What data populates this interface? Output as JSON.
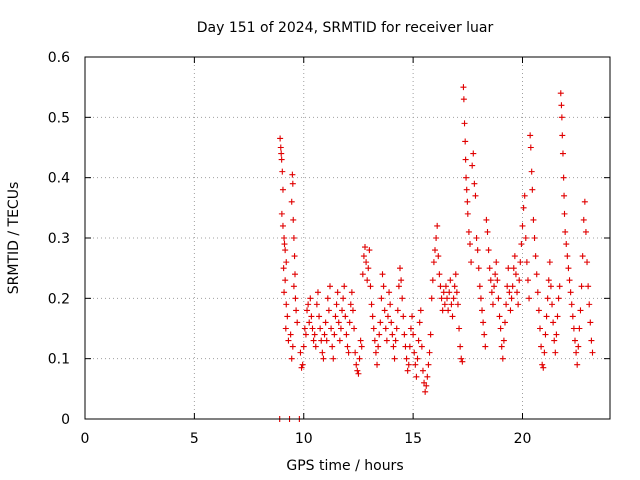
{
  "chart_data": {
    "type": "scatter",
    "title": "Day 151 of 2024, SRMTID for receiver luar",
    "xlabel": "GPS time / hours",
    "ylabel": "SRMTID / TECUs",
    "xlim": [
      0,
      24
    ],
    "ylim": [
      0,
      0.6
    ],
    "x_ticks": [
      0,
      5,
      10,
      15,
      20
    ],
    "x_tick_labels": [
      "0",
      "5",
      "10",
      "15",
      "20"
    ],
    "y_ticks": [
      0,
      0.1,
      0.2,
      0.3,
      0.4,
      0.5,
      0.6
    ],
    "y_tick_labels": [
      "0",
      "0.1",
      "0.2",
      "0.3",
      "0.4",
      "0.5",
      "0.6"
    ],
    "grid": true,
    "marker": "plus",
    "color": "#e00000",
    "series": [
      {
        "name": "SRMTID",
        "points": [
          [
            8.9,
            0.0
          ],
          [
            9.35,
            0.0
          ],
          [
            9.8,
            0.0
          ],
          [
            8.92,
            0.465
          ],
          [
            8.95,
            0.45
          ],
          [
            8.97,
            0.44
          ],
          [
            8.99,
            0.43
          ],
          [
            9.02,
            0.41
          ],
          [
            9.05,
            0.38
          ],
          [
            9.0,
            0.34
          ],
          [
            9.05,
            0.32
          ],
          [
            9.1,
            0.3
          ],
          [
            9.12,
            0.29
          ],
          [
            9.15,
            0.28
          ],
          [
            9.2,
            0.26
          ],
          [
            9.08,
            0.25
          ],
          [
            9.15,
            0.23
          ],
          [
            9.1,
            0.21
          ],
          [
            9.2,
            0.19
          ],
          [
            9.25,
            0.17
          ],
          [
            9.18,
            0.15
          ],
          [
            9.3,
            0.13
          ],
          [
            9.48,
            0.405
          ],
          [
            9.5,
            0.39
          ],
          [
            9.45,
            0.36
          ],
          [
            9.52,
            0.33
          ],
          [
            9.55,
            0.3
          ],
          [
            9.58,
            0.27
          ],
          [
            9.6,
            0.24
          ],
          [
            9.55,
            0.22
          ],
          [
            9.62,
            0.2
          ],
          [
            9.65,
            0.18
          ],
          [
            9.7,
            0.16
          ],
          [
            9.4,
            0.14
          ],
          [
            9.5,
            0.12
          ],
          [
            9.45,
            0.1
          ],
          [
            9.85,
            0.11
          ],
          [
            9.9,
            0.085
          ],
          [
            9.95,
            0.09
          ],
          [
            10.0,
            0.12
          ],
          [
            10.05,
            0.15
          ],
          [
            10.1,
            0.14
          ],
          [
            10.15,
            0.18
          ],
          [
            10.2,
            0.19
          ],
          [
            10.25,
            0.16
          ],
          [
            10.3,
            0.2
          ],
          [
            10.35,
            0.17
          ],
          [
            10.4,
            0.15
          ],
          [
            10.45,
            0.13
          ],
          [
            10.5,
            0.14
          ],
          [
            10.55,
            0.12
          ],
          [
            10.6,
            0.19
          ],
          [
            10.65,
            0.21
          ],
          [
            10.7,
            0.17
          ],
          [
            10.75,
            0.15
          ],
          [
            10.8,
            0.13
          ],
          [
            10.85,
            0.11
          ],
          [
            10.9,
            0.1
          ],
          [
            10.95,
            0.14
          ],
          [
            11.0,
            0.16
          ],
          [
            11.05,
            0.13
          ],
          [
            11.1,
            0.2
          ],
          [
            11.15,
            0.18
          ],
          [
            11.2,
            0.22
          ],
          [
            11.25,
            0.15
          ],
          [
            11.3,
            0.12
          ],
          [
            11.35,
            0.1
          ],
          [
            11.4,
            0.14
          ],
          [
            11.45,
            0.17
          ],
          [
            11.5,
            0.19
          ],
          [
            11.55,
            0.21
          ],
          [
            11.6,
            0.16
          ],
          [
            11.65,
            0.13
          ],
          [
            11.7,
            0.15
          ],
          [
            11.75,
            0.18
          ],
          [
            11.8,
            0.2
          ],
          [
            11.85,
            0.22
          ],
          [
            11.9,
            0.17
          ],
          [
            11.95,
            0.14
          ],
          [
            12.0,
            0.12
          ],
          [
            12.05,
            0.11
          ],
          [
            12.1,
            0.16
          ],
          [
            12.15,
            0.19
          ],
          [
            12.2,
            0.21
          ],
          [
            12.25,
            0.18
          ],
          [
            12.3,
            0.15
          ],
          [
            12.35,
            0.11
          ],
          [
            12.4,
            0.09
          ],
          [
            12.45,
            0.08
          ],
          [
            12.5,
            0.075
          ],
          [
            12.55,
            0.1
          ],
          [
            12.6,
            0.13
          ],
          [
            12.65,
            0.12
          ],
          [
            12.7,
            0.24
          ],
          [
            12.75,
            0.27
          ],
          [
            12.8,
            0.285
          ],
          [
            12.85,
            0.26
          ],
          [
            12.9,
            0.23
          ],
          [
            12.95,
            0.25
          ],
          [
            13.0,
            0.28
          ],
          [
            13.05,
            0.22
          ],
          [
            13.1,
            0.19
          ],
          [
            13.15,
            0.17
          ],
          [
            13.2,
            0.15
          ],
          [
            13.25,
            0.13
          ],
          [
            13.3,
            0.11
          ],
          [
            13.35,
            0.09
          ],
          [
            13.4,
            0.12
          ],
          [
            13.45,
            0.14
          ],
          [
            13.5,
            0.16
          ],
          [
            13.55,
            0.2
          ],
          [
            13.6,
            0.24
          ],
          [
            13.65,
            0.22
          ],
          [
            13.7,
            0.18
          ],
          [
            13.75,
            0.15
          ],
          [
            13.8,
            0.13
          ],
          [
            13.85,
            0.17
          ],
          [
            13.9,
            0.21
          ],
          [
            13.95,
            0.19
          ],
          [
            14.0,
            0.16
          ],
          [
            14.05,
            0.14
          ],
          [
            14.1,
            0.12
          ],
          [
            14.15,
            0.1
          ],
          [
            14.2,
            0.13
          ],
          [
            14.25,
            0.15
          ],
          [
            14.3,
            0.18
          ],
          [
            14.35,
            0.22
          ],
          [
            14.4,
            0.25
          ],
          [
            14.45,
            0.23
          ],
          [
            14.5,
            0.2
          ],
          [
            14.55,
            0.17
          ],
          [
            14.6,
            0.14
          ],
          [
            14.65,
            0.12
          ],
          [
            14.7,
            0.1
          ],
          [
            14.75,
            0.08
          ],
          [
            14.8,
            0.09
          ],
          [
            14.85,
            0.12
          ],
          [
            14.9,
            0.15
          ],
          [
            14.95,
            0.17
          ],
          [
            15.0,
            0.14
          ],
          [
            15.05,
            0.11
          ],
          [
            15.1,
            0.09
          ],
          [
            15.15,
            0.07
          ],
          [
            15.2,
            0.1
          ],
          [
            15.25,
            0.13
          ],
          [
            15.3,
            0.16
          ],
          [
            15.35,
            0.18
          ],
          [
            15.4,
            0.12
          ],
          [
            15.45,
            0.08
          ],
          [
            15.5,
            0.06
          ],
          [
            15.55,
            0.045
          ],
          [
            15.6,
            0.055
          ],
          [
            15.65,
            0.07
          ],
          [
            15.7,
            0.09
          ],
          [
            15.75,
            0.11
          ],
          [
            15.8,
            0.14
          ],
          [
            15.85,
            0.2
          ],
          [
            15.9,
            0.23
          ],
          [
            15.95,
            0.26
          ],
          [
            16.0,
            0.28
          ],
          [
            16.05,
            0.3
          ],
          [
            16.1,
            0.32
          ],
          [
            16.15,
            0.27
          ],
          [
            16.2,
            0.24
          ],
          [
            16.25,
            0.22
          ],
          [
            16.3,
            0.2
          ],
          [
            16.35,
            0.18
          ],
          [
            16.4,
            0.21
          ],
          [
            16.45,
            0.19
          ],
          [
            16.5,
            0.22
          ],
          [
            16.55,
            0.2
          ],
          [
            16.6,
            0.18
          ],
          [
            16.65,
            0.21
          ],
          [
            16.7,
            0.23
          ],
          [
            16.75,
            0.19
          ],
          [
            16.8,
            0.17
          ],
          [
            16.85,
            0.2
          ],
          [
            16.9,
            0.22
          ],
          [
            16.95,
            0.24
          ],
          [
            17.0,
            0.21
          ],
          [
            17.05,
            0.19
          ],
          [
            17.1,
            0.15
          ],
          [
            17.15,
            0.12
          ],
          [
            17.2,
            0.1
          ],
          [
            17.25,
            0.095
          ],
          [
            17.3,
            0.55
          ],
          [
            17.32,
            0.53
          ],
          [
            17.35,
            0.49
          ],
          [
            17.38,
            0.46
          ],
          [
            17.4,
            0.43
          ],
          [
            17.42,
            0.4
          ],
          [
            17.45,
            0.38
          ],
          [
            17.48,
            0.36
          ],
          [
            17.5,
            0.34
          ],
          [
            17.55,
            0.31
          ],
          [
            17.6,
            0.29
          ],
          [
            17.65,
            0.26
          ],
          [
            17.7,
            0.42
          ],
          [
            17.75,
            0.44
          ],
          [
            17.8,
            0.39
          ],
          [
            17.85,
            0.37
          ],
          [
            17.9,
            0.3
          ],
          [
            17.95,
            0.28
          ],
          [
            18.0,
            0.25
          ],
          [
            18.05,
            0.22
          ],
          [
            18.1,
            0.2
          ],
          [
            18.15,
            0.18
          ],
          [
            18.2,
            0.16
          ],
          [
            18.25,
            0.14
          ],
          [
            18.3,
            0.12
          ],
          [
            18.35,
            0.33
          ],
          [
            18.4,
            0.31
          ],
          [
            18.45,
            0.28
          ],
          [
            18.5,
            0.25
          ],
          [
            18.55,
            0.23
          ],
          [
            18.6,
            0.21
          ],
          [
            18.65,
            0.19
          ],
          [
            18.7,
            0.22
          ],
          [
            18.75,
            0.24
          ],
          [
            18.8,
            0.26
          ],
          [
            18.85,
            0.23
          ],
          [
            18.9,
            0.2
          ],
          [
            18.95,
            0.17
          ],
          [
            19.0,
            0.15
          ],
          [
            19.05,
            0.12
          ],
          [
            19.1,
            0.1
          ],
          [
            19.15,
            0.13
          ],
          [
            19.2,
            0.16
          ],
          [
            19.25,
            0.19
          ],
          [
            19.3,
            0.22
          ],
          [
            19.35,
            0.25
          ],
          [
            19.4,
            0.21
          ],
          [
            19.45,
            0.18
          ],
          [
            19.5,
            0.2
          ],
          [
            19.55,
            0.22
          ],
          [
            19.6,
            0.25
          ],
          [
            19.65,
            0.27
          ],
          [
            19.7,
            0.24
          ],
          [
            19.75,
            0.21
          ],
          [
            19.8,
            0.19
          ],
          [
            19.85,
            0.23
          ],
          [
            19.9,
            0.26
          ],
          [
            19.95,
            0.29
          ],
          [
            20.0,
            0.32
          ],
          [
            20.05,
            0.35
          ],
          [
            20.1,
            0.37
          ],
          [
            20.15,
            0.3
          ],
          [
            20.2,
            0.26
          ],
          [
            20.25,
            0.23
          ],
          [
            20.3,
            0.2
          ],
          [
            20.35,
            0.47
          ],
          [
            20.38,
            0.45
          ],
          [
            20.42,
            0.41
          ],
          [
            20.45,
            0.38
          ],
          [
            20.5,
            0.33
          ],
          [
            20.55,
            0.3
          ],
          [
            20.6,
            0.27
          ],
          [
            20.65,
            0.24
          ],
          [
            20.7,
            0.21
          ],
          [
            20.75,
            0.18
          ],
          [
            20.8,
            0.15
          ],
          [
            20.85,
            0.12
          ],
          [
            20.9,
            0.09
          ],
          [
            20.95,
            0.085
          ],
          [
            21.0,
            0.11
          ],
          [
            21.05,
            0.14
          ],
          [
            21.1,
            0.17
          ],
          [
            21.15,
            0.2
          ],
          [
            21.2,
            0.23
          ],
          [
            21.25,
            0.26
          ],
          [
            21.3,
            0.22
          ],
          [
            21.35,
            0.19
          ],
          [
            21.4,
            0.16
          ],
          [
            21.45,
            0.13
          ],
          [
            21.5,
            0.11
          ],
          [
            21.55,
            0.14
          ],
          [
            21.6,
            0.17
          ],
          [
            21.65,
            0.2
          ],
          [
            21.7,
            0.22
          ],
          [
            21.75,
            0.54
          ],
          [
            21.78,
            0.52
          ],
          [
            21.8,
            0.5
          ],
          [
            21.82,
            0.47
          ],
          [
            21.85,
            0.44
          ],
          [
            21.88,
            0.4
          ],
          [
            21.9,
            0.37
          ],
          [
            21.92,
            0.34
          ],
          [
            21.95,
            0.31
          ],
          [
            22.0,
            0.29
          ],
          [
            22.05,
            0.27
          ],
          [
            22.1,
            0.25
          ],
          [
            22.15,
            0.23
          ],
          [
            22.2,
            0.21
          ],
          [
            22.25,
            0.19
          ],
          [
            22.3,
            0.17
          ],
          [
            22.35,
            0.15
          ],
          [
            22.4,
            0.13
          ],
          [
            22.45,
            0.11
          ],
          [
            22.5,
            0.09
          ],
          [
            22.55,
            0.12
          ],
          [
            22.6,
            0.15
          ],
          [
            22.65,
            0.18
          ],
          [
            22.7,
            0.22
          ],
          [
            22.75,
            0.27
          ],
          [
            22.8,
            0.33
          ],
          [
            22.85,
            0.36
          ],
          [
            22.9,
            0.31
          ],
          [
            22.95,
            0.26
          ],
          [
            23.0,
            0.22
          ],
          [
            23.05,
            0.19
          ],
          [
            23.1,
            0.16
          ],
          [
            23.15,
            0.13
          ],
          [
            23.2,
            0.11
          ]
        ]
      }
    ]
  }
}
